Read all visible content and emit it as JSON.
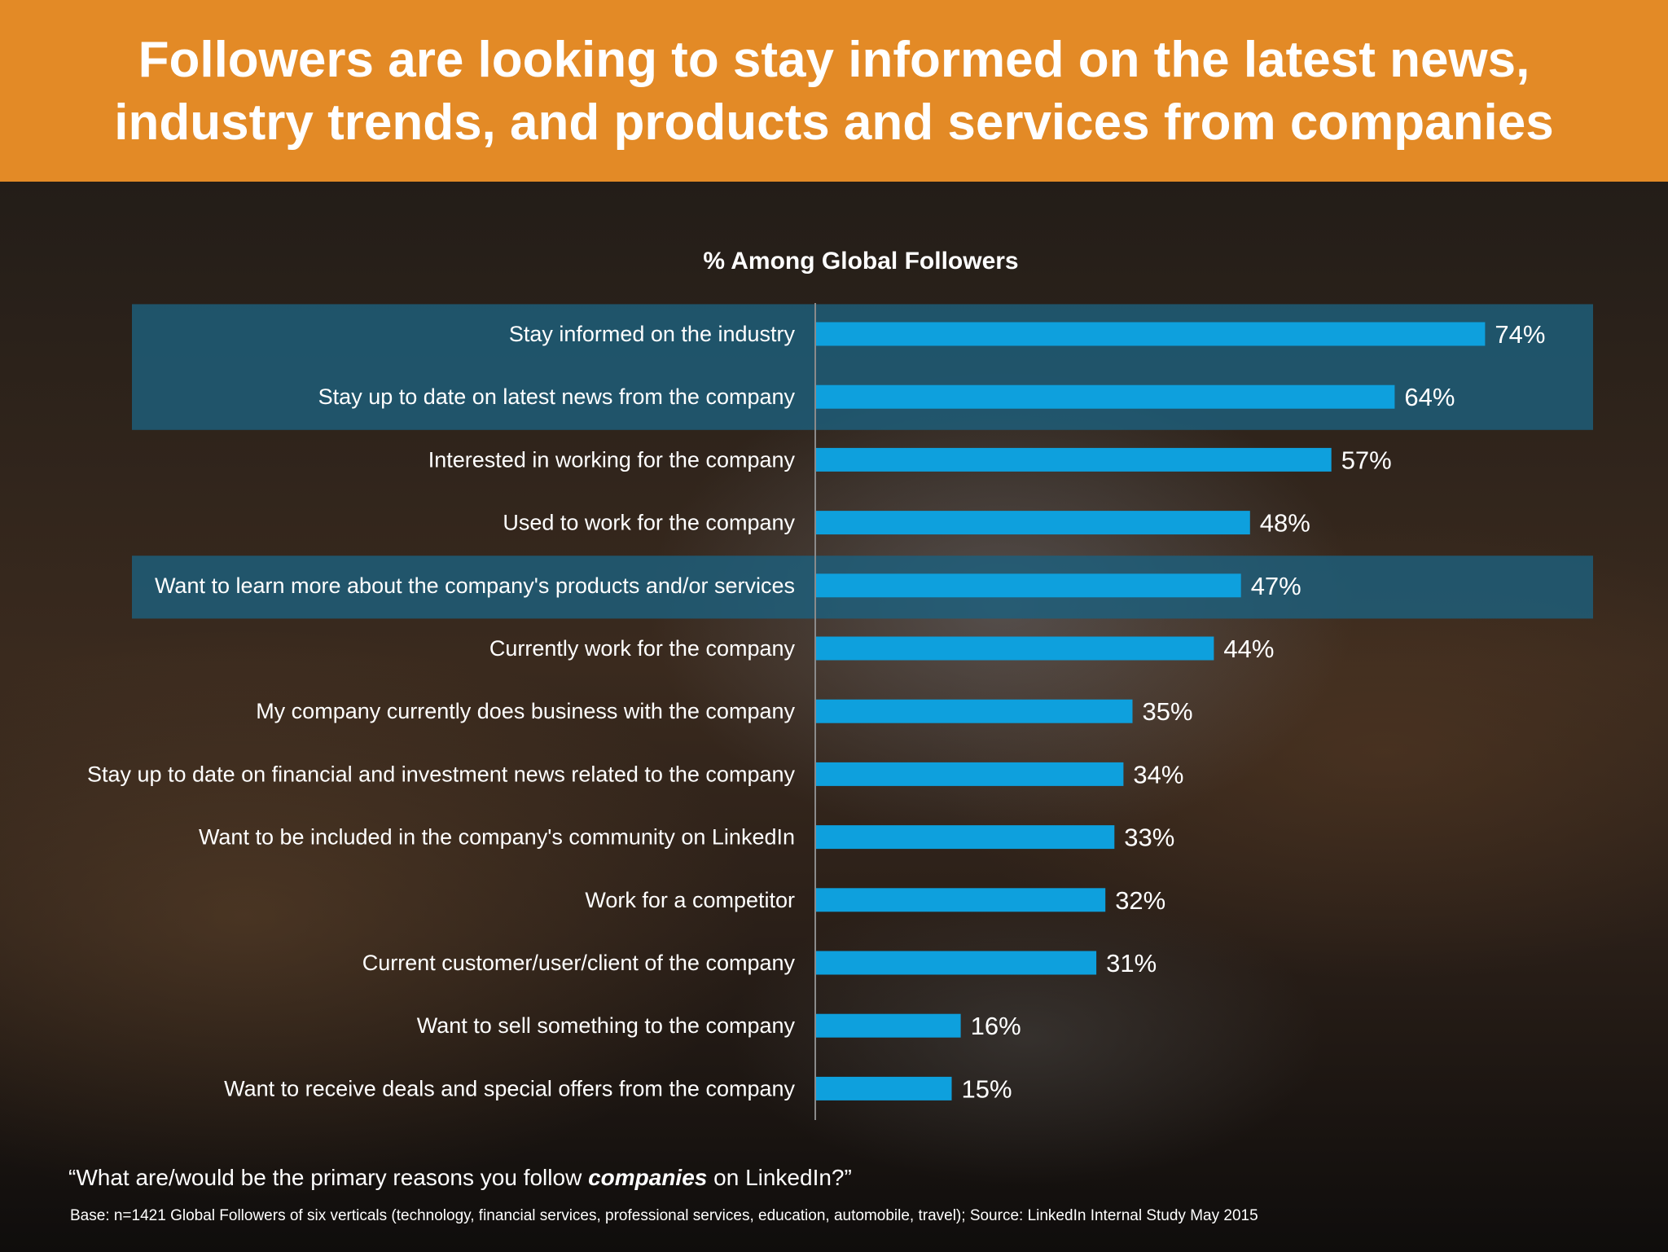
{
  "header": {
    "title": "Followers are looking to stay informed on the latest news, industry trends, and products and services from companies"
  },
  "colors": {
    "header_bg": "#e38a26",
    "bar": "#0ea0dd",
    "highlight_band": "#1d5f7c",
    "text": "#ffffff"
  },
  "chart_data": {
    "type": "bar",
    "orientation": "horizontal",
    "title": "% Among Global Followers",
    "unit": "%",
    "xlim": [
      0,
      100
    ],
    "grid": false,
    "categories": [
      "Stay informed on the industry",
      "Stay up to date on latest news from the company",
      "Interested in working for the company",
      "Used to work for the company",
      "Want to learn more about the company's products and/or services",
      "Currently work for the company",
      "My company currently does business with the company",
      "Stay up to date on financial and investment news related to the company",
      "Want to be included in the company's community on LinkedIn",
      "Work for a competitor",
      "Current customer/user/client of the company",
      "Want to sell something to the company",
      "Want to receive deals and special offers from the company"
    ],
    "values": [
      74,
      64,
      57,
      48,
      47,
      44,
      35,
      34,
      33,
      32,
      31,
      16,
      15
    ],
    "data_labels": [
      "74%",
      "64%",
      "57%",
      "48%",
      "47%",
      "44%",
      "35%",
      "34%",
      "33%",
      "32%",
      "31%",
      "16%",
      "15%"
    ],
    "highlighted_categories": [
      0,
      1,
      4
    ]
  },
  "footer": {
    "question_prefix": "“What are/would be the primary reasons you follow ",
    "question_emphasis": "companies",
    "question_suffix": " on LinkedIn?”",
    "base": "Base: n=1421 Global Followers of six verticals  (technology, financial services, professional services, education, automobile, travel); Source: LinkedIn Internal Study May 2015"
  }
}
